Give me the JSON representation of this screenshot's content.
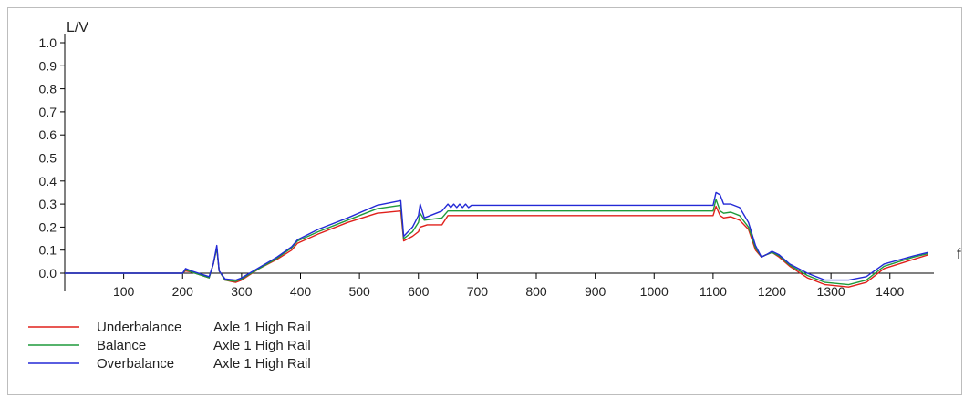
{
  "chart_data": {
    "type": "line",
    "ylabel": "L/V",
    "xlabel": "ft",
    "xlim": [
      0,
      1470
    ],
    "ylim": [
      0,
      1.0
    ],
    "x_ticks": [
      "100",
      "200",
      "300",
      "400",
      "500",
      "600",
      "700",
      "800",
      "900",
      "1000",
      "1100",
      "1200",
      "1300",
      "1400"
    ],
    "y_ticks": [
      "0.0",
      "0.1",
      "0.2",
      "0.3",
      "0.4",
      "0.5",
      "0.6",
      "0.7",
      "0.8",
      "0.9",
      "1.0"
    ],
    "legend_position": "bottom-left",
    "series": [
      {
        "name": "Underbalance",
        "detail": "Axle 1 High Rail",
        "color": "#e0201b",
        "points": [
          [
            0,
            0
          ],
          [
            200,
            0
          ],
          [
            205,
            0.01
          ],
          [
            215,
            0.005
          ],
          [
            245,
            -0.02
          ],
          [
            252,
            0.04
          ],
          [
            258,
            0.11
          ],
          [
            262,
            0.01
          ],
          [
            272,
            -0.03
          ],
          [
            290,
            -0.04
          ],
          [
            300,
            -0.03
          ],
          [
            330,
            0.02
          ],
          [
            360,
            0.06
          ],
          [
            385,
            0.1
          ],
          [
            395,
            0.13
          ],
          [
            430,
            0.17
          ],
          [
            480,
            0.22
          ],
          [
            530,
            0.26
          ],
          [
            570,
            0.27
          ],
          [
            575,
            0.14
          ],
          [
            590,
            0.16
          ],
          [
            600,
            0.18
          ],
          [
            603,
            0.2
          ],
          [
            615,
            0.21
          ],
          [
            640,
            0.21
          ],
          [
            650,
            0.25
          ],
          [
            660,
            0.25
          ],
          [
            800,
            0.25
          ],
          [
            1000,
            0.25
          ],
          [
            1100,
            0.25
          ],
          [
            1105,
            0.29
          ],
          [
            1112,
            0.25
          ],
          [
            1118,
            0.24
          ],
          [
            1130,
            0.245
          ],
          [
            1145,
            0.23
          ],
          [
            1160,
            0.19
          ],
          [
            1172,
            0.1
          ],
          [
            1182,
            0.07
          ],
          [
            1190,
            0.08
          ],
          [
            1200,
            0.09
          ],
          [
            1212,
            0.07
          ],
          [
            1230,
            0.03
          ],
          [
            1260,
            -0.02
          ],
          [
            1290,
            -0.05
          ],
          [
            1330,
            -0.06
          ],
          [
            1360,
            -0.04
          ],
          [
            1390,
            0.02
          ],
          [
            1440,
            0.06
          ],
          [
            1465,
            0.08
          ]
        ]
      },
      {
        "name": "Balance",
        "detail": "Axle 1 High Rail",
        "color": "#1f9a3b",
        "points": [
          [
            0,
            0
          ],
          [
            200,
            0
          ],
          [
            205,
            0.015
          ],
          [
            215,
            0.005
          ],
          [
            245,
            -0.02
          ],
          [
            252,
            0.04
          ],
          [
            258,
            0.11
          ],
          [
            262,
            0.01
          ],
          [
            272,
            -0.03
          ],
          [
            290,
            -0.035
          ],
          [
            300,
            -0.025
          ],
          [
            330,
            0.02
          ],
          [
            360,
            0.065
          ],
          [
            385,
            0.11
          ],
          [
            395,
            0.14
          ],
          [
            430,
            0.18
          ],
          [
            480,
            0.23
          ],
          [
            530,
            0.28
          ],
          [
            570,
            0.295
          ],
          [
            575,
            0.15
          ],
          [
            590,
            0.18
          ],
          [
            600,
            0.22
          ],
          [
            603,
            0.26
          ],
          [
            610,
            0.23
          ],
          [
            640,
            0.24
          ],
          [
            650,
            0.27
          ],
          [
            660,
            0.27
          ],
          [
            800,
            0.27
          ],
          [
            1000,
            0.27
          ],
          [
            1100,
            0.27
          ],
          [
            1105,
            0.32
          ],
          [
            1112,
            0.27
          ],
          [
            1118,
            0.26
          ],
          [
            1130,
            0.265
          ],
          [
            1145,
            0.25
          ],
          [
            1160,
            0.2
          ],
          [
            1172,
            0.11
          ],
          [
            1182,
            0.07
          ],
          [
            1190,
            0.08
          ],
          [
            1200,
            0.09
          ],
          [
            1212,
            0.075
          ],
          [
            1230,
            0.035
          ],
          [
            1260,
            -0.01
          ],
          [
            1290,
            -0.04
          ],
          [
            1330,
            -0.05
          ],
          [
            1360,
            -0.03
          ],
          [
            1390,
            0.03
          ],
          [
            1440,
            0.07
          ],
          [
            1465,
            0.085
          ]
        ]
      },
      {
        "name": "Overbalance",
        "detail": "Axle 1 High Rail",
        "color": "#2329d6",
        "points": [
          [
            0,
            0
          ],
          [
            200,
            0
          ],
          [
            205,
            0.02
          ],
          [
            215,
            0.01
          ],
          [
            245,
            -0.015
          ],
          [
            252,
            0.04
          ],
          [
            258,
            0.12
          ],
          [
            262,
            0.01
          ],
          [
            272,
            -0.025
          ],
          [
            290,
            -0.03
          ],
          [
            300,
            -0.02
          ],
          [
            330,
            0.025
          ],
          [
            360,
            0.07
          ],
          [
            385,
            0.115
          ],
          [
            395,
            0.145
          ],
          [
            430,
            0.19
          ],
          [
            480,
            0.24
          ],
          [
            530,
            0.295
          ],
          [
            570,
            0.315
          ],
          [
            575,
            0.16
          ],
          [
            590,
            0.2
          ],
          [
            600,
            0.25
          ],
          [
            603,
            0.3
          ],
          [
            610,
            0.24
          ],
          [
            640,
            0.27
          ],
          [
            650,
            0.3
          ],
          [
            655,
            0.285
          ],
          [
            660,
            0.3
          ],
          [
            665,
            0.285
          ],
          [
            670,
            0.3
          ],
          [
            675,
            0.285
          ],
          [
            680,
            0.3
          ],
          [
            685,
            0.285
          ],
          [
            690,
            0.295
          ],
          [
            800,
            0.295
          ],
          [
            1000,
            0.295
          ],
          [
            1100,
            0.295
          ],
          [
            1105,
            0.35
          ],
          [
            1112,
            0.34
          ],
          [
            1118,
            0.3
          ],
          [
            1130,
            0.3
          ],
          [
            1145,
            0.285
          ],
          [
            1160,
            0.22
          ],
          [
            1172,
            0.12
          ],
          [
            1182,
            0.07
          ],
          [
            1190,
            0.08
          ],
          [
            1200,
            0.095
          ],
          [
            1212,
            0.08
          ],
          [
            1230,
            0.04
          ],
          [
            1260,
            0.0
          ],
          [
            1290,
            -0.03
          ],
          [
            1330,
            -0.03
          ],
          [
            1360,
            -0.015
          ],
          [
            1390,
            0.04
          ],
          [
            1440,
            0.075
          ],
          [
            1465,
            0.09
          ]
        ]
      }
    ]
  }
}
